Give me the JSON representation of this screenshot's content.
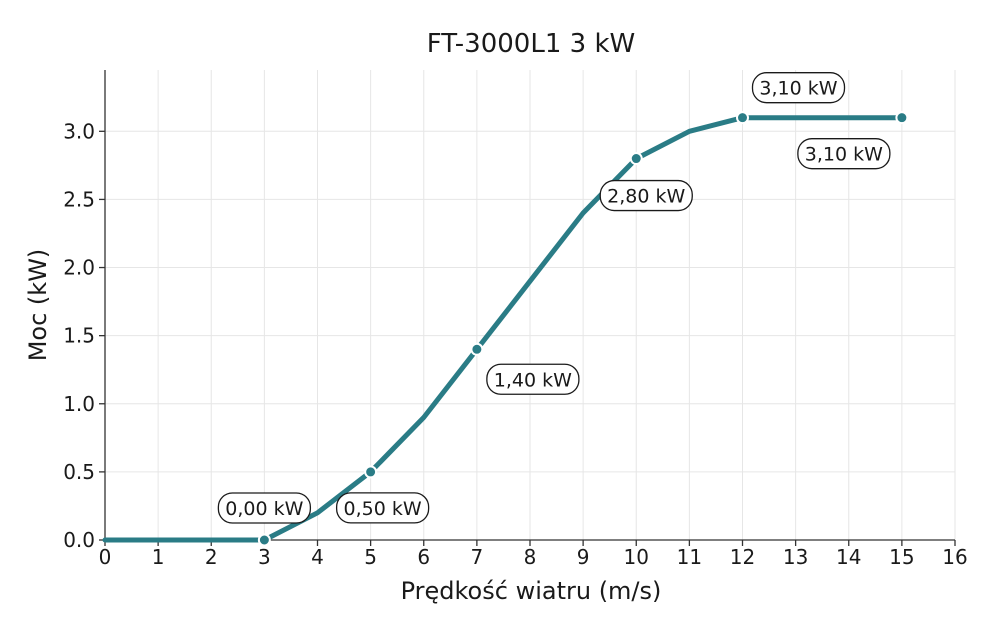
{
  "chart_data": {
    "type": "line",
    "title": "FT-3000L1 3 kW",
    "xlabel": "Prędkość wiatru (m/s)",
    "ylabel": "Moc (kW)",
    "xlim": [
      0,
      16
    ],
    "ylim": [
      0,
      3.45
    ],
    "x_ticks": [
      "0",
      "1",
      "2",
      "3",
      "4",
      "5",
      "6",
      "7",
      "8",
      "9",
      "10",
      "11",
      "12",
      "13",
      "14",
      "15",
      "16"
    ],
    "y_ticks": [
      "0.0",
      "0.5",
      "1.0",
      "1.5",
      "2.0",
      "2.5",
      "3.0"
    ],
    "grid": true,
    "series": [
      {
        "color": "#2a7c86",
        "x": [
          0,
          1,
          2,
          3,
          4,
          5,
          6,
          7,
          8,
          9,
          10,
          11,
          12,
          13,
          14,
          15
        ],
        "y": [
          0,
          0,
          0,
          0,
          0.2,
          0.5,
          0.9,
          1.4,
          1.9,
          2.4,
          2.8,
          3.0,
          3.1,
          3.1,
          3.1,
          3.1
        ]
      }
    ],
    "markers": [
      {
        "x": 3,
        "y": 0
      },
      {
        "x": 5,
        "y": 0.5
      },
      {
        "x": 7,
        "y": 1.4
      },
      {
        "x": 10,
        "y": 2.8
      },
      {
        "x": 12,
        "y": 3.1
      },
      {
        "x": 15,
        "y": 3.1
      }
    ],
    "annotations": [
      {
        "text": "0,00 kW",
        "x": 3,
        "y": 0
      },
      {
        "text": "0,50 kW",
        "x": 5,
        "y": 0.5
      },
      {
        "text": "1,40 kW",
        "x": 7,
        "y": 1.4
      },
      {
        "text": "2,80 kW",
        "x": 10,
        "y": 2.8
      },
      {
        "text": "3,10 kW",
        "x": 12,
        "y": 3.1
      },
      {
        "text": "3,10 kW",
        "x": 15,
        "y": 3.1
      }
    ]
  }
}
